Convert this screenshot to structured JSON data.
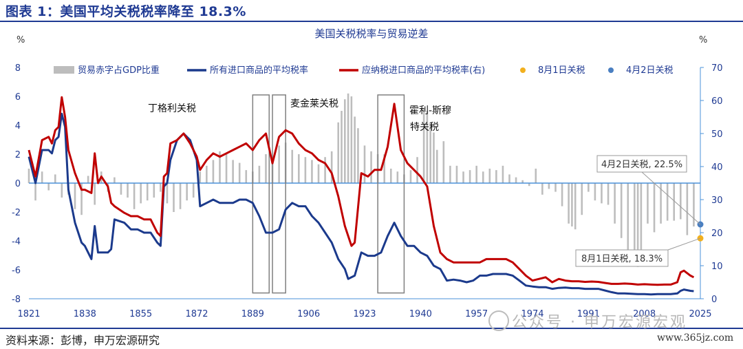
{
  "header": {
    "title": "图表 1：美国平均关税税率降至 18.3%"
  },
  "footer": {
    "source": "资料来源：彭博，申万宏源研究",
    "watermark": "公众号 · 申万宏源宏观",
    "site": "www.365jz.com"
  },
  "colors": {
    "brand": "#1f3a93",
    "deficit_bar": "#bdbdbd",
    "avg_tariff": "#1b3a8c",
    "dutiable_tariff": "#c00000",
    "aug1": "#f2b01e",
    "apr2": "#4a7fc1",
    "zero_line": "#4a90d9"
  },
  "chart_data": {
    "type": "bar+line",
    "title": "美国关税税率与贸易逆差",
    "ylabel_left": "%",
    "ylabel_right": "%",
    "ylim_left": [
      -8,
      8
    ],
    "ylim_right": [
      0,
      70
    ],
    "yticks_left": [
      "8",
      "6",
      "4",
      "2",
      "0",
      "-2",
      "-4",
      "-6",
      "-8"
    ],
    "yticks_right": [
      "70",
      "60",
      "50",
      "40",
      "30",
      "20",
      "10",
      "0"
    ],
    "x_tick_labels": [
      "1821",
      "1838",
      "1855",
      "1872",
      "1889",
      "1906",
      "1923",
      "1940",
      "1957",
      "1974",
      "1991",
      "2008",
      "2025"
    ],
    "xlim": [
      1821,
      2025
    ],
    "legend": [
      {
        "label": "贸易赤字占GDP比重",
        "kind": "bar"
      },
      {
        "label": "所有进口商品的平均税率",
        "kind": "line-blue"
      },
      {
        "label": "应纳税进口商品的平均税率(右)",
        "kind": "line-red"
      },
      {
        "label": "8月1日关税",
        "kind": "dot-yellow"
      },
      {
        "label": "4月2日关税",
        "kind": "dot-blue"
      }
    ],
    "legend_placement": "top",
    "annotations": [
      {
        "text": "丁格利关税",
        "year": 1895,
        "y_left": 5.0
      },
      {
        "text": "麦金莱关税",
        "year": 1890,
        "y_left": 5.5
      },
      {
        "text": "霍利-斯穆",
        "year": 1930,
        "y_left": 5.1
      },
      {
        "text": "特关税",
        "year": 1930,
        "y_left": 3.8
      }
    ],
    "policy_windows": [
      {
        "start": 1889,
        "end": 1894
      },
      {
        "start": 1895,
        "end": 1899
      },
      {
        "start": 1927,
        "end": 1935
      }
    ],
    "callouts": [
      {
        "text": "4月2日关税, 22.5%",
        "year": 2025,
        "y_right": 22.5
      },
      {
        "text": "8月1日关税, 18.3%",
        "year": 2025,
        "y_right": 18.3
      }
    ],
    "series": [
      {
        "name": "所有进口商品的平均税率",
        "axis": "right",
        "points": [
          [
            1821,
            43
          ],
          [
            1823,
            35
          ],
          [
            1825,
            45
          ],
          [
            1827,
            45
          ],
          [
            1828,
            44
          ],
          [
            1829,
            48
          ],
          [
            1830,
            49
          ],
          [
            1831,
            56
          ],
          [
            1832,
            52
          ],
          [
            1833,
            33
          ],
          [
            1835,
            23
          ],
          [
            1837,
            17
          ],
          [
            1838,
            16
          ],
          [
            1840,
            12
          ],
          [
            1841,
            22
          ],
          [
            1842,
            14
          ],
          [
            1843,
            14
          ],
          [
            1845,
            14
          ],
          [
            1846,
            15
          ],
          [
            1847,
            24
          ],
          [
            1850,
            23
          ],
          [
            1852,
            21
          ],
          [
            1854,
            21
          ],
          [
            1856,
            20
          ],
          [
            1858,
            20
          ],
          [
            1860,
            17
          ],
          [
            1861,
            16
          ],
          [
            1862,
            34
          ],
          [
            1863,
            35
          ],
          [
            1864,
            42
          ],
          [
            1866,
            48
          ],
          [
            1868,
            50
          ],
          [
            1870,
            48
          ],
          [
            1872,
            42
          ],
          [
            1873,
            28
          ],
          [
            1875,
            29
          ],
          [
            1877,
            30
          ],
          [
            1879,
            29
          ],
          [
            1881,
            29
          ],
          [
            1883,
            29
          ],
          [
            1885,
            30
          ],
          [
            1887,
            30
          ],
          [
            1889,
            29
          ],
          [
            1891,
            25
          ],
          [
            1893,
            20
          ],
          [
            1895,
            20
          ],
          [
            1897,
            21
          ],
          [
            1899,
            27
          ],
          [
            1901,
            29
          ],
          [
            1903,
            28
          ],
          [
            1905,
            28
          ],
          [
            1907,
            25
          ],
          [
            1909,
            23
          ],
          [
            1911,
            20
          ],
          [
            1913,
            17
          ],
          [
            1915,
            12
          ],
          [
            1917,
            9
          ],
          [
            1918,
            6
          ],
          [
            1920,
            7
          ],
          [
            1922,
            14
          ],
          [
            1924,
            13
          ],
          [
            1926,
            13
          ],
          [
            1928,
            14
          ],
          [
            1930,
            19
          ],
          [
            1932,
            23
          ],
          [
            1934,
            19
          ],
          [
            1936,
            16
          ],
          [
            1938,
            16
          ],
          [
            1940,
            14
          ],
          [
            1942,
            13
          ],
          [
            1944,
            10
          ],
          [
            1946,
            9
          ],
          [
            1948,
            5.5
          ],
          [
            1950,
            5.8
          ],
          [
            1952,
            5.5
          ],
          [
            1954,
            5
          ],
          [
            1956,
            5.5
          ],
          [
            1958,
            7
          ],
          [
            1960,
            7
          ],
          [
            1962,
            7.5
          ],
          [
            1964,
            7.5
          ],
          [
            1966,
            7.5
          ],
          [
            1968,
            7
          ],
          [
            1970,
            5.5
          ],
          [
            1972,
            4
          ],
          [
            1974,
            3.7
          ],
          [
            1976,
            3.5
          ],
          [
            1978,
            3.5
          ],
          [
            1980,
            3
          ],
          [
            1982,
            3.3
          ],
          [
            1984,
            3.4
          ],
          [
            1986,
            3.2
          ],
          [
            1988,
            3.2
          ],
          [
            1990,
            3
          ],
          [
            1992,
            3
          ],
          [
            1994,
            3
          ],
          [
            1996,
            2.5
          ],
          [
            1998,
            2
          ],
          [
            2000,
            1.6
          ],
          [
            2002,
            1.6
          ],
          [
            2004,
            1.5
          ],
          [
            2006,
            1.4
          ],
          [
            2008,
            1.4
          ],
          [
            2010,
            1.3
          ],
          [
            2012,
            1.4
          ],
          [
            2014,
            1.4
          ],
          [
            2016,
            1.4
          ],
          [
            2018,
            1.6
          ],
          [
            2019,
            2.4
          ],
          [
            2020,
            2.8
          ],
          [
            2022,
            2.4
          ],
          [
            2023,
            2.3
          ]
        ]
      },
      {
        "name": "应纳税进口商品的平均税率(右)",
        "axis": "right",
        "points": [
          [
            1821,
            45
          ],
          [
            1823,
            37
          ],
          [
            1825,
            48
          ],
          [
            1827,
            49
          ],
          [
            1828,
            47
          ],
          [
            1829,
            51
          ],
          [
            1830,
            52
          ],
          [
            1831,
            61
          ],
          [
            1832,
            55
          ],
          [
            1833,
            45
          ],
          [
            1835,
            38
          ],
          [
            1837,
            33
          ],
          [
            1838,
            33
          ],
          [
            1840,
            32
          ],
          [
            1841,
            44
          ],
          [
            1842,
            35
          ],
          [
            1843,
            37
          ],
          [
            1845,
            34
          ],
          [
            1846,
            29
          ],
          [
            1847,
            28
          ],
          [
            1850,
            26
          ],
          [
            1852,
            25
          ],
          [
            1854,
            25
          ],
          [
            1856,
            24
          ],
          [
            1858,
            24
          ],
          [
            1860,
            20
          ],
          [
            1861,
            19
          ],
          [
            1862,
            37
          ],
          [
            1863,
            38
          ],
          [
            1864,
            47
          ],
          [
            1866,
            48
          ],
          [
            1868,
            50
          ],
          [
            1870,
            47
          ],
          [
            1872,
            43
          ],
          [
            1873,
            39
          ],
          [
            1875,
            42
          ],
          [
            1877,
            44
          ],
          [
            1879,
            43
          ],
          [
            1881,
            44
          ],
          [
            1883,
            45
          ],
          [
            1885,
            46
          ],
          [
            1887,
            47
          ],
          [
            1889,
            45
          ],
          [
            1891,
            48
          ],
          [
            1893,
            50
          ],
          [
            1895,
            41
          ],
          [
            1897,
            49
          ],
          [
            1899,
            51
          ],
          [
            1901,
            50
          ],
          [
            1903,
            47
          ],
          [
            1905,
            45
          ],
          [
            1907,
            44
          ],
          [
            1909,
            42
          ],
          [
            1911,
            41
          ],
          [
            1913,
            38
          ],
          [
            1915,
            31
          ],
          [
            1917,
            22
          ],
          [
            1919,
            16
          ],
          [
            1920,
            17
          ],
          [
            1922,
            38
          ],
          [
            1924,
            37
          ],
          [
            1926,
            39
          ],
          [
            1928,
            39
          ],
          [
            1930,
            46
          ],
          [
            1932,
            59
          ],
          [
            1934,
            45
          ],
          [
            1936,
            41
          ],
          [
            1938,
            39
          ],
          [
            1940,
            37
          ],
          [
            1942,
            34
          ],
          [
            1944,
            22
          ],
          [
            1946,
            14
          ],
          [
            1948,
            12
          ],
          [
            1950,
            11
          ],
          [
            1952,
            11
          ],
          [
            1954,
            11
          ],
          [
            1956,
            11
          ],
          [
            1958,
            11
          ],
          [
            1960,
            12
          ],
          [
            1962,
            12
          ],
          [
            1964,
            12
          ],
          [
            1966,
            12
          ],
          [
            1968,
            11
          ],
          [
            1970,
            9
          ],
          [
            1972,
            7
          ],
          [
            1974,
            5.5
          ],
          [
            1976,
            6
          ],
          [
            1978,
            6.5
          ],
          [
            1980,
            5
          ],
          [
            1982,
            6
          ],
          [
            1984,
            5.5
          ],
          [
            1986,
            5.3
          ],
          [
            1988,
            5.3
          ],
          [
            1990,
            5.1
          ],
          [
            1992,
            5.2
          ],
          [
            1994,
            5.1
          ],
          [
            1996,
            4.8
          ],
          [
            1998,
            4.5
          ],
          [
            2000,
            4.5
          ],
          [
            2002,
            4.6
          ],
          [
            2004,
            4.5
          ],
          [
            2006,
            4.3
          ],
          [
            2008,
            4.4
          ],
          [
            2010,
            4.3
          ],
          [
            2012,
            4.2
          ],
          [
            2014,
            4.3
          ],
          [
            2016,
            4.3
          ],
          [
            2018,
            5
          ],
          [
            2019,
            8
          ],
          [
            2020,
            8.5
          ],
          [
            2022,
            7
          ],
          [
            2023,
            6.5
          ]
        ]
      }
    ],
    "bars": {
      "name": "贸易赤字占GDP比重",
      "axis": "left",
      "x": [
        1821,
        1823,
        1825,
        1827,
        1829,
        1831,
        1833,
        1835,
        1837,
        1839,
        1841,
        1843,
        1845,
        1847,
        1849,
        1851,
        1853,
        1855,
        1857,
        1859,
        1861,
        1863,
        1865,
        1867,
        1869,
        1871,
        1873,
        1875,
        1877,
        1879,
        1881,
        1883,
        1885,
        1887,
        1889,
        1891,
        1893,
        1895,
        1897,
        1899,
        1901,
        1903,
        1905,
        1907,
        1909,
        1911,
        1913,
        1915,
        1916,
        1917,
        1918,
        1919,
        1920,
        1921,
        1923,
        1925,
        1927,
        1929,
        1931,
        1933,
        1935,
        1937,
        1939,
        1941,
        1942,
        1943,
        1944,
        1945,
        1947,
        1949,
        1951,
        1953,
        1955,
        1957,
        1959,
        1961,
        1963,
        1965,
        1967,
        1969,
        1971,
        1973,
        1975,
        1977,
        1979,
        1981,
        1983,
        1985,
        1986,
        1987,
        1989,
        1991,
        1993,
        1995,
        1997,
        1999,
        2001,
        2003,
        2005,
        2006,
        2007,
        2009,
        2011,
        2013,
        2015,
        2017,
        2019,
        2021,
        2023
      ],
      "values": [
        1.0,
        -1.2,
        0.8,
        -0.5,
        0.6,
        -1.0,
        -0.8,
        -1.8,
        -2.2,
        0.5,
        -1.5,
        0.8,
        -0.6,
        0.4,
        -0.8,
        -1.0,
        -1.8,
        -1.4,
        -1.2,
        -1.0,
        -0.6,
        -1.4,
        -2.0,
        -1.8,
        -1.2,
        -1.0,
        0.8,
        1.2,
        1.6,
        2.2,
        2.0,
        1.6,
        1.4,
        0.9,
        0.8,
        1.2,
        2.0,
        1.5,
        2.6,
        2.8,
        2.3,
        2.0,
        1.8,
        1.6,
        1.3,
        1.8,
        2.2,
        4.2,
        5.0,
        5.8,
        6.2,
        6.0,
        4.6,
        3.8,
        2.6,
        2.2,
        2.0,
        2.0,
        1.0,
        0.8,
        0.6,
        0.9,
        1.8,
        5.2,
        5.0,
        4.2,
        3.5,
        2.3,
        2.9,
        1.2,
        1.2,
        0.8,
        0.9,
        1.2,
        0.8,
        1.0,
        0.9,
        1.2,
        0.6,
        0.4,
        0.2,
        -0.2,
        1.0,
        -0.8,
        -0.4,
        -0.6,
        -1.6,
        -2.8,
        -3.0,
        -3.2,
        -2.2,
        -0.6,
        -1.2,
        -1.4,
        -1.5,
        -2.8,
        -3.8,
        -4.6,
        -5.6,
        -5.8,
        -5.2,
        -2.8,
        -3.4,
        -2.8,
        -2.6,
        -2.6,
        -2.5,
        -3.6,
        -3.0
      ]
    },
    "points": [
      {
        "name": "4月2日关税",
        "year": 2025,
        "value": 22.5,
        "axis": "right"
      },
      {
        "name": "8月1日关税",
        "year": 2025,
        "value": 18.3,
        "axis": "right"
      }
    ]
  }
}
